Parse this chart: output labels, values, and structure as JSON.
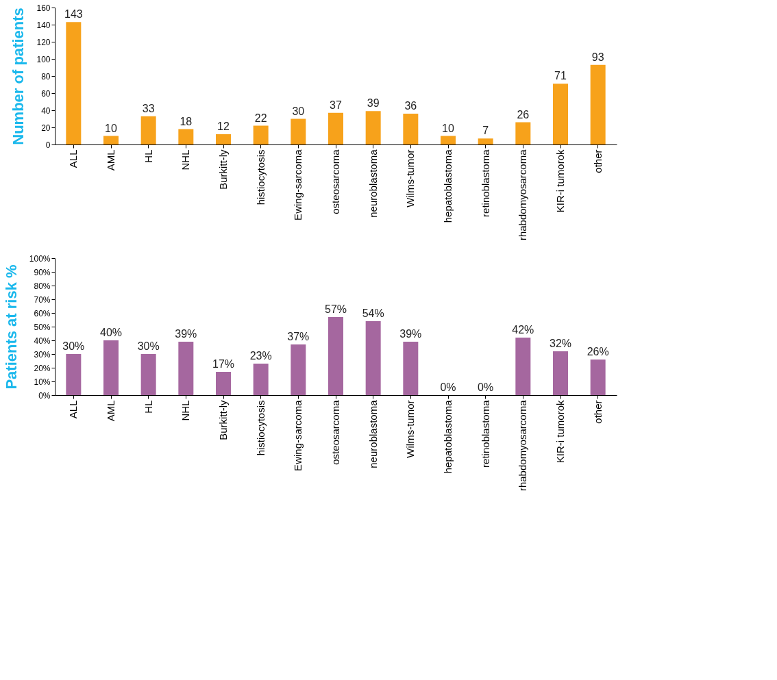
{
  "chart_data": [
    {
      "type": "bar",
      "ylabel": "Number of patients",
      "categories": [
        "ALL",
        "AML",
        "HL",
        "NHL",
        "Burkitt-ly",
        "histiocytosis",
        "Ewing-sarcoma",
        "osteosarcoma",
        "neuroblastoma",
        "Wilms-tumor",
        "hepatoblastoma",
        "retinoblastoma",
        "rhabdomyosarcoma",
        "KIR-i tumorok",
        "other"
      ],
      "values": [
        143,
        10,
        33,
        18,
        12,
        22,
        30,
        37,
        39,
        36,
        10,
        7,
        26,
        71,
        93
      ],
      "color": "#f7a21b",
      "ylim": [
        0,
        160
      ],
      "yticks": [
        0,
        20,
        40,
        60,
        80,
        100,
        120,
        140,
        160
      ],
      "grid": false,
      "data_labels": true
    },
    {
      "type": "bar",
      "ylabel": "Patients at risk %",
      "categories": [
        "ALL",
        "AML",
        "HL",
        "NHL",
        "Burkitt-ly",
        "histiocytosis",
        "Ewing-sarcoma",
        "osteosarcoma",
        "neuroblastoma",
        "Wilms-tumor",
        "hepatoblastoma",
        "retinoblastoma",
        "rhabdomyosarcoma",
        "KIR-i tumorok",
        "other"
      ],
      "values": [
        30,
        40,
        30,
        39,
        17,
        23,
        37,
        57,
        54,
        39,
        0,
        0,
        42,
        32,
        26
      ],
      "value_labels": [
        "30%",
        "40%",
        "30%",
        "39%",
        "17%",
        "23%",
        "37%",
        "57%",
        "54%",
        "39%",
        "0%",
        "0%",
        "42%",
        "32%",
        "26%"
      ],
      "color": "#a5679f",
      "ylim": [
        0,
        100
      ],
      "grid": false,
      "yticks": [
        {
          "value": 0,
          "label": "0%"
        },
        {
          "value": 10,
          "label": "10%"
        },
        {
          "value": 20,
          "label": "20%"
        },
        {
          "value": 30,
          "label": "30%"
        },
        {
          "value": 40,
          "label": "40%"
        },
        {
          "value": 50,
          "label": "50%"
        },
        {
          "value": 60,
          "label": "60%"
        },
        {
          "value": 70,
          "label": "70%"
        },
        {
          "value": 80,
          "label": "80%"
        },
        {
          "value": 90,
          "label": "90%"
        },
        {
          "value": 100,
          "label": "100%"
        }
      ]
    }
  ]
}
